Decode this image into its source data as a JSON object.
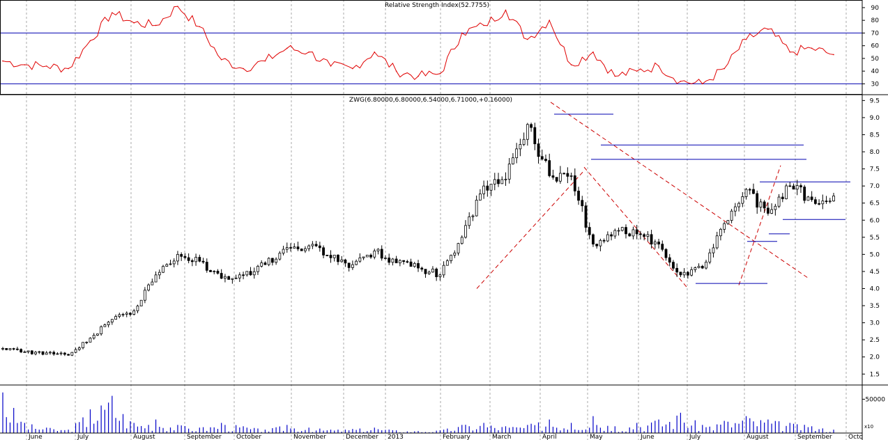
{
  "panels": {
    "rsi": {
      "title": "Relative Strength Index(52.7755)",
      "y_ticks": [
        "90",
        "80",
        "70",
        "60",
        "50",
        "40",
        "30"
      ],
      "y_tick_values": [
        90,
        80,
        70,
        60,
        50,
        40,
        30
      ],
      "y_range": [
        22,
        96
      ],
      "reference_lines": [
        70,
        30
      ],
      "line_color": "#e00000",
      "ref_color": "#0000b0"
    },
    "price": {
      "title": "ZWG(6.80000,6.80000,6.54000,6.71000,+0.16000)",
      "y_ticks": [
        "9.5",
        "9.0",
        "8.5",
        "8.0",
        "7.5",
        "7.0",
        "6.5",
        "6.0",
        "5.5",
        "5.0",
        "4.5",
        "4.0",
        "3.5",
        "3.0",
        "2.5",
        "2.0",
        "1.5"
      ],
      "y_tick_values": [
        9.5,
        9.0,
        8.5,
        8.0,
        7.5,
        7.0,
        6.5,
        6.0,
        5.5,
        5.0,
        4.5,
        4.0,
        3.5,
        3.0,
        2.5,
        2.0,
        1.5
      ],
      "y_range": [
        1.2,
        9.65
      ]
    },
    "volume": {
      "y_ticks": [
        "50000"
      ],
      "y_tick_values": [
        50000
      ],
      "scale_label": "x10",
      "bar_color": "#0000c8"
    }
  },
  "x_axis": {
    "month_labels": [
      "June",
      "July",
      "August",
      "September",
      "October",
      "November",
      "December",
      "2013",
      "February",
      "March",
      "April",
      "May",
      "June",
      "July",
      "August",
      "September",
      "Octo"
    ]
  },
  "chart_data": [
    {
      "type": "line",
      "panel": "rsi",
      "title": "Relative Strength Index(52.7755)",
      "xlabel": "",
      "ylabel": "",
      "ylim": [
        22,
        96
      ],
      "grid": true,
      "reference_lines": [
        70,
        30
      ],
      "x": [
        "Jun",
        "Jun",
        "Jul",
        "Jul",
        "Aug",
        "Aug",
        "Aug",
        "Sep",
        "Sep",
        "Sep",
        "Oct",
        "Oct",
        "Oct",
        "Nov",
        "Nov",
        "Dec",
        "Dec",
        "2013",
        "Jan",
        "Feb",
        "Feb",
        "Mar",
        "Mar",
        "Apr",
        "Apr",
        "May",
        "May",
        "May",
        "Jun",
        "Jun",
        "Jul",
        "Jul",
        "Jul",
        "Aug",
        "Aug",
        "Aug",
        "Sep",
        "Sep",
        "Sep"
      ],
      "series": [
        {
          "values": [
            48,
            45,
            44,
            42,
            64,
            86,
            78,
            76,
            91,
            75,
            49,
            42,
            48,
            58,
            55,
            44,
            42,
            55,
            40,
            36,
            38,
            70,
            76,
            88,
            65,
            80,
            45,
            55,
            36,
            40,
            44,
            32,
            30,
            42,
            65,
            73,
            55,
            58,
            53
          ]
        }
      ]
    },
    {
      "type": "candlestick",
      "panel": "price",
      "title": "ZWG(6.80000,6.80000,6.54000,6.71000,+0.16000)",
      "xlabel": "",
      "ylabel": "",
      "ylim": [
        1.2,
        9.65
      ],
      "grid": true,
      "x": [
        "Jun",
        "Jun",
        "Jul",
        "Jul",
        "Aug",
        "Aug",
        "Aug",
        "Sep",
        "Sep",
        "Sep",
        "Oct",
        "Oct",
        "Oct",
        "Nov",
        "Nov",
        "Dec",
        "Dec",
        "2013",
        "Jan",
        "Feb",
        "Feb",
        "Mar",
        "Mar",
        "Apr",
        "Apr",
        "May",
        "May",
        "May",
        "Jun",
        "Jun",
        "Jul",
        "Jul",
        "Jul",
        "Aug",
        "Aug",
        "Aug",
        "Sep",
        "Sep",
        "Sep"
      ],
      "series": [
        {
          "name": "close",
          "values": [
            2.25,
            2.15,
            2.12,
            2.05,
            2.55,
            3.1,
            3.35,
            4.4,
            5.0,
            4.8,
            4.3,
            4.4,
            4.7,
            5.2,
            5.25,
            4.9,
            4.7,
            5.1,
            4.75,
            4.6,
            4.4,
            5.5,
            7.0,
            7.2,
            8.8,
            7.3,
            7.3,
            5.3,
            5.7,
            5.6,
            5.3,
            4.4,
            4.6,
            5.9,
            6.9,
            6.2,
            7.0,
            6.6,
            6.71
          ]
        }
      ]
    },
    {
      "type": "bar",
      "panel": "volume",
      "title": "",
      "xlabel": "",
      "ylabel": "",
      "ylim": [
        0,
        70000
      ],
      "grid": true,
      "x": [
        "Jun",
        "Jun",
        "Jul",
        "Jul",
        "Aug",
        "Aug",
        "Aug",
        "Sep",
        "Sep",
        "Sep",
        "Oct",
        "Oct",
        "Oct",
        "Nov",
        "Nov",
        "Dec",
        "Dec",
        "2013",
        "Jan",
        "Feb",
        "Feb",
        "Mar",
        "Mar",
        "Apr",
        "Apr",
        "May",
        "May",
        "May",
        "Jun",
        "Jun",
        "Jul",
        "Jul",
        "Jul",
        "Aug",
        "Aug",
        "Aug",
        "Sep",
        "Sep",
        "Sep"
      ],
      "series": [
        {
          "values": [
            60000,
            15000,
            8000,
            5000,
            35000,
            55000,
            15000,
            20000,
            12000,
            8000,
            15000,
            10000,
            5000,
            12000,
            8000,
            5000,
            6000,
            8000,
            4000,
            3000,
            4000,
            12000,
            15000,
            10000,
            12000,
            20000,
            15000,
            25000,
            10000,
            15000,
            20000,
            30000,
            12000,
            18000,
            25000,
            20000,
            15000,
            10000,
            5000
          ]
        }
      ]
    }
  ],
  "annotations": {
    "trend_color": "#cc0000",
    "level_color": "#0000b0"
  }
}
